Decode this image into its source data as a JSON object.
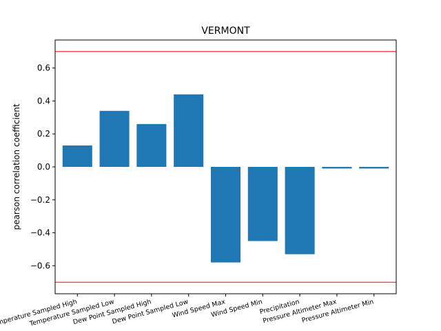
{
  "chart_data": {
    "type": "bar",
    "title": "VERMONT",
    "xlabel": "",
    "ylabel": "pearson correlation coefficient",
    "categories": [
      "Temperature Sampled High",
      "Temperature Sampled Low",
      "Dew Point Sampled High",
      "Dew Point Sampled Low",
      "Wind Speed Max",
      "Wind Speed Min",
      "Precipitation",
      "Pressure Altimeter Max",
      "Pressure Altimeter Min"
    ],
    "values": [
      0.13,
      0.34,
      0.26,
      0.44,
      -0.58,
      -0.45,
      -0.53,
      -0.01,
      -0.01
    ],
    "ylim": [
      -0.77,
      0.77
    ],
    "yticks": [
      "−0.6",
      "−0.4",
      "−0.2",
      "0.0",
      "0.2",
      "0.4",
      "0.6"
    ],
    "ytick_values": [
      -0.6,
      -0.4,
      -0.2,
      0.0,
      0.2,
      0.4,
      0.6
    ],
    "reference_lines": [
      0.7,
      -0.7
    ],
    "colors": {
      "bar": "#1f77b4",
      "reference_line": "#ff0000"
    },
    "grid": false,
    "legend": "none"
  }
}
